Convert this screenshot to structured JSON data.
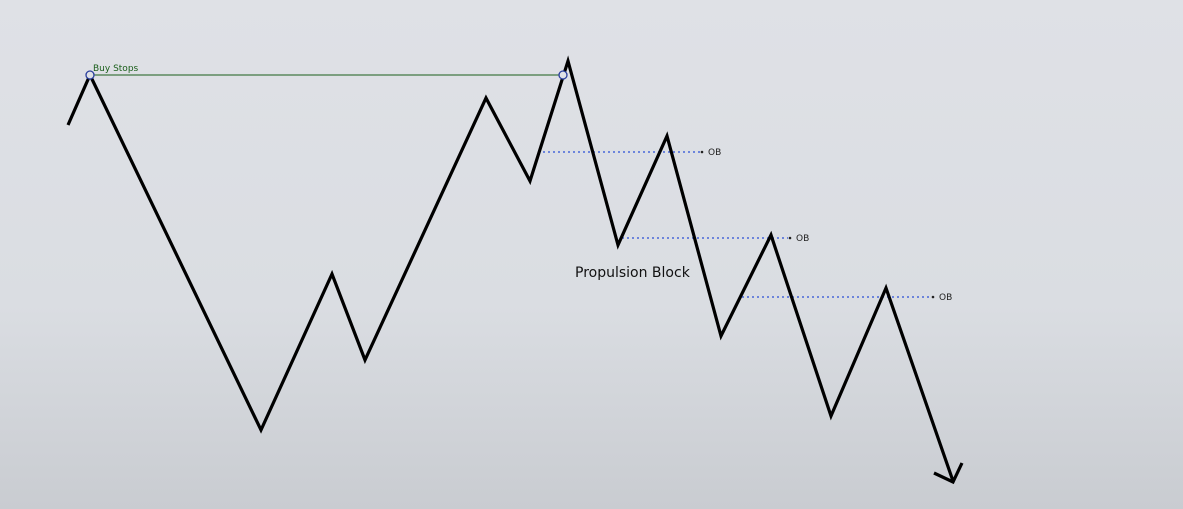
{
  "annotations": {
    "buy_stops_label": "Buy Stops",
    "propulsion_block_label": "Propulsion Block",
    "ob_labels": [
      "OB",
      "OB",
      "OB"
    ]
  },
  "colors": {
    "background_top": "#dfe1e6",
    "background_bottom": "#c9ccd1",
    "price_path": "#000000",
    "buy_stops_line": "#1a5e1a",
    "buy_stops_text": "#1a5e1a",
    "swing_marker": "#2a3f9e",
    "ob_line": "#2a4fd6",
    "ob_text": "#222222"
  },
  "icons": {
    "path_end": "arrow-down-icon",
    "swing_marker": "circle-marker-icon"
  }
}
